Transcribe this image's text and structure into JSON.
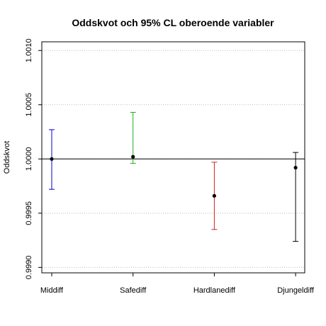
{
  "chart_data": {
    "type": "errorbar",
    "title": "Oddskvot och 95% CL oberoende variabler",
    "xlabel": "",
    "ylabel": "Oddskvot",
    "ylim": [
      0.99895,
      1.00108
    ],
    "yticks": [
      0.999,
      0.9995,
      1.0,
      1.0005,
      1.001
    ],
    "ytick_labels": [
      "0.9990",
      "0.9995",
      "1.0000",
      "1.0005",
      "1.0010"
    ],
    "grid": "horizontal dotted",
    "reference_line": 1.0,
    "categories": [
      "Middiff",
      "Safediff",
      "Hardlanediff",
      "Djungeldiff"
    ],
    "estimates": [
      1.0,
      1.00002,
      0.99966,
      0.99992
    ],
    "lower": [
      0.99972,
      0.99996,
      0.99935,
      0.99924
    ],
    "upper": [
      1.00027,
      1.00043,
      0.99997,
      1.00006
    ],
    "colors": [
      "#0000cc",
      "#22aa22",
      "#cc2222",
      "#000000"
    ]
  }
}
